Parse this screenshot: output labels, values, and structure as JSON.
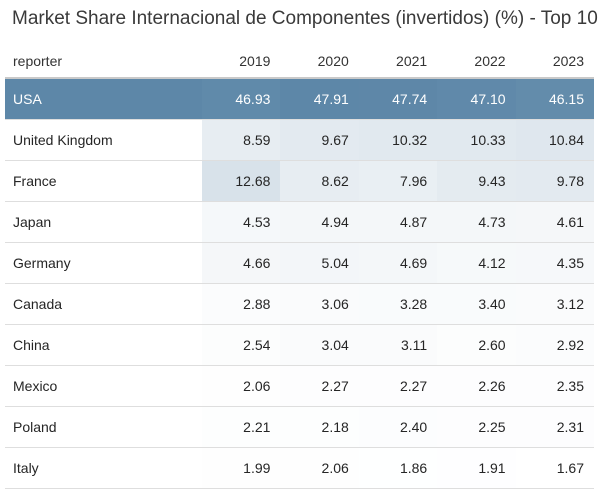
{
  "title": "Market Share Internacional de Componentes (invertidos) (%) - Top 10",
  "chart_data": {
    "type": "heatmap",
    "title": "Market Share Internacional de Componentes (invertidos) (%) - Top 10",
    "row_header": "reporter",
    "columns": [
      "2019",
      "2020",
      "2021",
      "2022",
      "2023"
    ],
    "rows": [
      {
        "label": "USA",
        "values": [
          "46.93",
          "47.91",
          "47.74",
          "47.10",
          "46.15"
        ]
      },
      {
        "label": "United Kingdom",
        "values": [
          "8.59",
          "9.67",
          "10.32",
          "10.33",
          "10.84"
        ]
      },
      {
        "label": "France",
        "values": [
          "12.68",
          "8.62",
          "7.96",
          "9.43",
          "9.78"
        ]
      },
      {
        "label": "Japan",
        "values": [
          "4.53",
          "4.94",
          "4.87",
          "4.73",
          "4.61"
        ]
      },
      {
        "label": "Germany",
        "values": [
          "4.66",
          "5.04",
          "4.69",
          "4.12",
          "4.35"
        ]
      },
      {
        "label": "Canada",
        "values": [
          "2.88",
          "3.06",
          "3.28",
          "3.40",
          "3.12"
        ]
      },
      {
        "label": "China",
        "values": [
          "2.54",
          "3.04",
          "3.11",
          "2.60",
          "2.92"
        ]
      },
      {
        "label": "Mexico",
        "values": [
          "2.06",
          "2.27",
          "2.27",
          "2.26",
          "2.35"
        ]
      },
      {
        "label": "Poland",
        "values": [
          "2.21",
          "2.18",
          "2.40",
          "2.25",
          "2.31"
        ]
      },
      {
        "label": "Italy",
        "values": [
          "1.99",
          "2.06",
          "1.86",
          "1.91",
          "1.67"
        ]
      }
    ],
    "color_scale": {
      "low": "#ffffff",
      "high": "#5d87a8",
      "high_text": "#ffffff",
      "low_text": "#252525"
    }
  }
}
